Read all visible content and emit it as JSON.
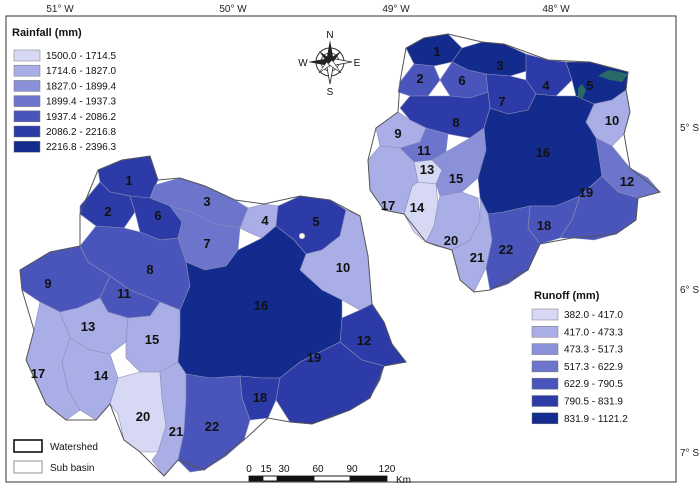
{
  "coords": {
    "top": [
      "51° W",
      "50° W",
      "49° W",
      "48° W"
    ],
    "right": [
      "5° S",
      "6° S",
      "7° S"
    ]
  },
  "compass": {
    "n": "N",
    "s": "S",
    "e": "E",
    "w": "W"
  },
  "rainfall_legend": {
    "title": "Rainfall (mm)",
    "classes": [
      {
        "label": "1500.0 - 1714.5",
        "color": "#d6d8f4"
      },
      {
        "label": "1714.6 - 1827.0",
        "color": "#a9aee6"
      },
      {
        "label": "1827.0 - 1899.4",
        "color": "#8b91d8"
      },
      {
        "label": "1899.4 - 1937.3",
        "color": "#6c74cb"
      },
      {
        "label": "1937.4 - 2086.2",
        "color": "#4a55bb"
      },
      {
        "label": "2086.2 - 2216.8",
        "color": "#2c3ba8"
      },
      {
        "label": "2216.8 - 2396.3",
        "color": "#132b8c"
      }
    ]
  },
  "runoff_legend": {
    "title": "Runoff (mm)",
    "classes": [
      {
        "label": "382.0 - 417.0",
        "color": "#d6d8f4"
      },
      {
        "label": "417.0 - 473.3",
        "color": "#a9aee6"
      },
      {
        "label": "473.3 - 517.3",
        "color": "#8b91d8"
      },
      {
        "label": "517.3 - 622.9",
        "color": "#6c74cb"
      },
      {
        "label": "622.9 - 790.5",
        "color": "#4a55bb"
      },
      {
        "label": "790.5 - 831.9",
        "color": "#2c3ba8"
      },
      {
        "label": "831.9 - 1121.2",
        "color": "#132b8c"
      }
    ]
  },
  "rainfall_map": {
    "subbasins": [
      {
        "id": "1",
        "cls": 5
      },
      {
        "id": "2",
        "cls": 5
      },
      {
        "id": "3",
        "cls": 3
      },
      {
        "id": "4",
        "cls": 1
      },
      {
        "id": "5",
        "cls": 5
      },
      {
        "id": "6",
        "cls": 5
      },
      {
        "id": "7",
        "cls": 3
      },
      {
        "id": "8",
        "cls": 4
      },
      {
        "id": "9",
        "cls": 4
      },
      {
        "id": "10",
        "cls": 1
      },
      {
        "id": "11",
        "cls": 4
      },
      {
        "id": "12",
        "cls": 5
      },
      {
        "id": "13",
        "cls": 1
      },
      {
        "id": "14",
        "cls": 1
      },
      {
        "id": "15",
        "cls": 1
      },
      {
        "id": "16",
        "cls": 6
      },
      {
        "id": "17",
        "cls": 1
      },
      {
        "id": "18",
        "cls": 5
      },
      {
        "id": "19",
        "cls": 5
      },
      {
        "id": "20",
        "cls": 0
      },
      {
        "id": "21",
        "cls": 1
      },
      {
        "id": "22",
        "cls": 4
      }
    ]
  },
  "runoff_map": {
    "subbasins": [
      {
        "id": "1",
        "cls": 6
      },
      {
        "id": "2",
        "cls": 4
      },
      {
        "id": "3",
        "cls": 6
      },
      {
        "id": "4",
        "cls": 5
      },
      {
        "id": "5",
        "cls": 6
      },
      {
        "id": "6",
        "cls": 4
      },
      {
        "id": "7",
        "cls": 5
      },
      {
        "id": "8",
        "cls": 5
      },
      {
        "id": "9",
        "cls": 1
      },
      {
        "id": "10",
        "cls": 1
      },
      {
        "id": "11",
        "cls": 3
      },
      {
        "id": "12",
        "cls": 3
      },
      {
        "id": "13",
        "cls": 0
      },
      {
        "id": "14",
        "cls": 0
      },
      {
        "id": "15",
        "cls": 2
      },
      {
        "id": "16",
        "cls": 6
      },
      {
        "id": "17",
        "cls": 1
      },
      {
        "id": "18",
        "cls": 4
      },
      {
        "id": "19",
        "cls": 4
      },
      {
        "id": "20",
        "cls": 1
      },
      {
        "id": "21",
        "cls": 1
      },
      {
        "id": "22",
        "cls": 4
      }
    ]
  },
  "key": {
    "watershed": "Watershed",
    "subbasin": "Sub basin"
  },
  "scalebar": {
    "ticks": [
      "0",
      "15",
      "30",
      "60",
      "90",
      "120"
    ],
    "unit": "Km"
  }
}
